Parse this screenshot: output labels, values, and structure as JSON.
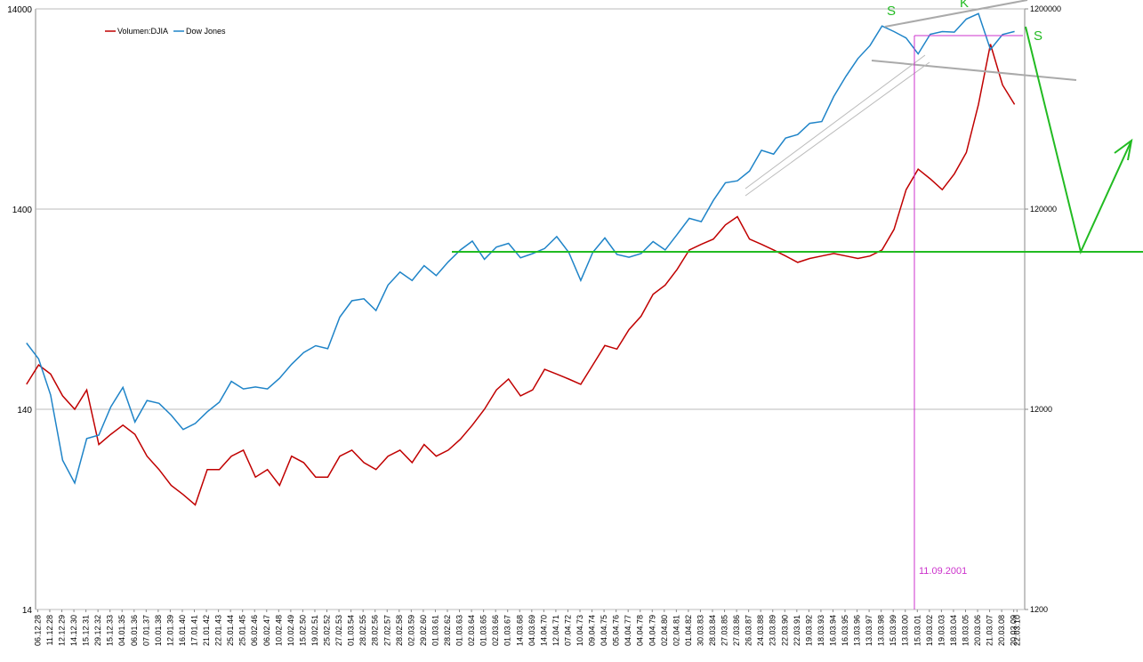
{
  "chart_data": {
    "type": "line",
    "x": [
      1928,
      1929,
      1930,
      1931,
      1932,
      1933,
      1934,
      1935,
      1936,
      1937,
      1938,
      1939,
      1940,
      1941,
      1942,
      1943,
      1944,
      1945,
      1946,
      1947,
      1948,
      1949,
      1950,
      1951,
      1952,
      1953,
      1954,
      1955,
      1956,
      1957,
      1958,
      1959,
      1960,
      1961,
      1962,
      1963,
      1964,
      1965,
      1966,
      1967,
      1968,
      1969,
      1970,
      1971,
      1972,
      1973,
      1974,
      1975,
      1976,
      1977,
      1978,
      1979,
      1980,
      1981,
      1982,
      1983,
      1984,
      1985,
      1986,
      1987,
      1988,
      1989,
      1990,
      1991,
      1992,
      1993,
      1994,
      1995,
      1996,
      1997,
      1998,
      1999,
      2000,
      2001,
      2002,
      2003,
      2004,
      2005,
      2006,
      2007,
      2008,
      2009,
      2010
    ],
    "series": [
      {
        "name": "Volumen:DJIA",
        "color": "#c00000",
        "axis": "y2",
        "values": [
          16000,
          20000,
          18000,
          14000,
          12000,
          15000,
          8000,
          9000,
          10000,
          9000,
          7000,
          6000,
          5000,
          4500,
          4000,
          6000,
          6000,
          7000,
          7500,
          5500,
          6000,
          5000,
          7000,
          6500,
          5500,
          5500,
          7000,
          7500,
          6500,
          6000,
          7000,
          7500,
          6500,
          8000,
          7000,
          7500,
          8500,
          10000,
          12000,
          15000,
          17000,
          14000,
          15000,
          19000,
          18000,
          17000,
          16000,
          20000,
          25000,
          24000,
          30000,
          35000,
          45000,
          50000,
          60000,
          75000,
          80000,
          85000,
          100000,
          110000,
          85000,
          80000,
          75000,
          70000,
          65000,
          68000,
          70000,
          72000,
          70000,
          68000,
          70000,
          75000,
          95000,
          150000,
          190000,
          170000,
          150000,
          180000,
          230000,
          400000,
          800000,
          500000,
          400000
        ]
      },
      {
        "name": "Dow Jones",
        "color": "#1f84c8",
        "values": [
          300,
          250,
          165,
          78,
          60,
          100,
          104,
          144,
          180,
          121,
          155,
          150,
          131,
          111,
          119,
          136,
          152,
          193,
          177,
          181,
          177,
          200,
          235,
          269,
          291,
          281,
          404,
          488,
          499,
          436,
          584,
          679,
          616,
          731,
          652,
          763,
          874,
          969,
          786,
          905,
          944,
          800,
          839,
          890,
          1020,
          851,
          616,
          852,
          1005,
          831,
          805,
          839,
          964,
          875,
          1047,
          1259,
          1212,
          1547,
          1896,
          1939,
          2169,
          2753,
          2634,
          3169,
          3301,
          3754,
          3834,
          5117,
          6448,
          7908,
          9181,
          11497,
          10787,
          10022,
          8342,
          10454,
          10783,
          10718,
          12463,
          13265,
          8776,
          10428,
          10800
        ]
      }
    ],
    "ylim": [
      14,
      14000
    ],
    "yticks": [
      14,
      140,
      1400,
      14000
    ],
    "y2lim": [
      1200,
      1200000
    ],
    "y2ticks": [
      1200,
      12000,
      120000,
      1200000
    ],
    "log_scale": true,
    "grid": true,
    "xlim": [
      1928.9,
      2010.25
    ],
    "xticks": [
      {
        "value": 1928.93,
        "label": "06.12.28"
      },
      {
        "value": 1929.93,
        "label": "11.12.28"
      },
      {
        "value": 1930.93,
        "label": "12.12.29"
      },
      {
        "value": 1931.93,
        "label": "14.12.30"
      },
      {
        "value": 1932.93,
        "label": "15.12.31"
      },
      {
        "value": 1933.93,
        "label": "29.12.32"
      },
      {
        "value": 1934.93,
        "label": "15.12.33"
      },
      {
        "value": 1935.93,
        "label": "04.01.35"
      },
      {
        "value": 1936.93,
        "label": "06.01.36"
      },
      {
        "value": 1937.93,
        "label": "07.01.37"
      },
      {
        "value": 1938.93,
        "label": "10.01.38"
      },
      {
        "value": 1939.93,
        "label": "12.01.39"
      },
      {
        "value": 1940.93,
        "label": "16.01.40"
      },
      {
        "value": 1941.93,
        "label": "17.01.41"
      },
      {
        "value": 1942.93,
        "label": "21.01.42"
      },
      {
        "value": 1943.93,
        "label": "22.01.43"
      },
      {
        "value": 1944.93,
        "label": "25.01.44"
      },
      {
        "value": 1945.93,
        "label": "25.01.45"
      },
      {
        "value": 1946.93,
        "label": "06.02.46"
      },
      {
        "value": 1947.93,
        "label": "06.02.47"
      },
      {
        "value": 1948.93,
        "label": "10.02.48"
      },
      {
        "value": 1949.93,
        "label": "10.02.49"
      },
      {
        "value": 1950.93,
        "label": "15.02.50"
      },
      {
        "value": 1951.93,
        "label": "19.02.51"
      },
      {
        "value": 1952.93,
        "label": "25.02.52"
      },
      {
        "value": 1953.93,
        "label": "27.02.53"
      },
      {
        "value": 1954.93,
        "label": "01.03.54"
      },
      {
        "value": 1955.93,
        "label": "28.02.55"
      },
      {
        "value": 1956.93,
        "label": "28.02.56"
      },
      {
        "value": 1957.93,
        "label": "27.02.57"
      },
      {
        "value": 1958.93,
        "label": "28.02.58"
      },
      {
        "value": 1959.93,
        "label": "02.03.59"
      },
      {
        "value": 1960.93,
        "label": "29.02.60"
      },
      {
        "value": 1961.93,
        "label": "01.03.61"
      },
      {
        "value": 1962.93,
        "label": "28.02.62"
      },
      {
        "value": 1963.93,
        "label": "01.03.63"
      },
      {
        "value": 1964.93,
        "label": "02.03.64"
      },
      {
        "value": 1965.93,
        "label": "01.03.65"
      },
      {
        "value": 1966.93,
        "label": "02.03.66"
      },
      {
        "value": 1967.93,
        "label": "01.03.67"
      },
      {
        "value": 1968.93,
        "label": "14.03.68"
      },
      {
        "value": 1969.93,
        "label": "04.03.69"
      },
      {
        "value": 1970.93,
        "label": "14.04.70"
      },
      {
        "value": 1971.93,
        "label": "12.04.71"
      },
      {
        "value": 1972.93,
        "label": "07.04.72"
      },
      {
        "value": 1973.93,
        "label": "10.04.73"
      },
      {
        "value": 1974.93,
        "label": "09.04.74"
      },
      {
        "value": 1975.93,
        "label": "04.04.75"
      },
      {
        "value": 1976.93,
        "label": "05.04.76"
      },
      {
        "value": 1977.93,
        "label": "04.04.77"
      },
      {
        "value": 1978.93,
        "label": "04.04.78"
      },
      {
        "value": 1979.93,
        "label": "04.04.79"
      },
      {
        "value": 1980.93,
        "label": "02.04.80"
      },
      {
        "value": 1981.93,
        "label": "02.04.81"
      },
      {
        "value": 1982.93,
        "label": "01.04.82"
      },
      {
        "value": 1983.93,
        "label": "30.03.83"
      },
      {
        "value": 1984.93,
        "label": "28.03.84"
      },
      {
        "value": 1985.93,
        "label": "27.03.85"
      },
      {
        "value": 1986.93,
        "label": "27.03.86"
      },
      {
        "value": 1987.93,
        "label": "26.03.87"
      },
      {
        "value": 1988.93,
        "label": "24.03.88"
      },
      {
        "value": 1989.93,
        "label": "23.03.89"
      },
      {
        "value": 1990.93,
        "label": "22.03.90"
      },
      {
        "value": 1991.93,
        "label": "22.03.91"
      },
      {
        "value": 1992.93,
        "label": "19.03.92"
      },
      {
        "value": 1993.93,
        "label": "18.03.93"
      },
      {
        "value": 1994.93,
        "label": "16.03.94"
      },
      {
        "value": 1995.93,
        "label": "16.03.95"
      },
      {
        "value": 1996.93,
        "label": "13.03.96"
      },
      {
        "value": 1997.93,
        "label": "13.03.97"
      },
      {
        "value": 1998.93,
        "label": "13.03.98"
      },
      {
        "value": 1999.93,
        "label": "15.03.99"
      },
      {
        "value": 2000.93,
        "label": "13.03.00"
      },
      {
        "value": 2001.93,
        "label": "15.03.01"
      },
      {
        "value": 2002.93,
        "label": "19.03.02"
      },
      {
        "value": 2003.93,
        "label": "19.03.03"
      },
      {
        "value": 2004.93,
        "label": "18.03.04"
      },
      {
        "value": 2005.93,
        "label": "18.03.05"
      },
      {
        "value": 2006.93,
        "label": "20.03.06"
      },
      {
        "value": 2007.93,
        "label": "21.03.07"
      },
      {
        "value": 2008.93,
        "label": "20.03.08"
      },
      {
        "value": 2009.93,
        "label": "20.03.09"
      },
      {
        "value": 2010.2,
        "label": "22.03.10"
      }
    ],
    "annotations": [
      "S",
      "K",
      "S",
      "11.09.2001"
    ]
  }
}
